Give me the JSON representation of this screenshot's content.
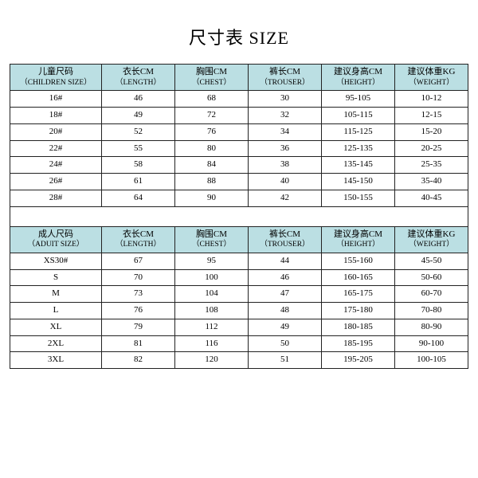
{
  "title": "尺寸表 SIZE",
  "colors": {
    "header_bg": "#bbdfe3",
    "border": "#222222",
    "background": "#ffffff"
  },
  "children_table": {
    "headers": [
      {
        "cn": "儿童尺码",
        "en": "（CHILDREN SIZE）"
      },
      {
        "cn": "衣长CM",
        "en": "（LENGTH）"
      },
      {
        "cn": "胸围CM",
        "en": "（CHEST）"
      },
      {
        "cn": "裤长CM",
        "en": "（TROUSER）"
      },
      {
        "cn": "建议身高CM",
        "en": "（HEIGHT）"
      },
      {
        "cn": "建议体重KG",
        "en": "（WEIGHT）"
      }
    ],
    "rows": [
      [
        "16#",
        "46",
        "68",
        "30",
        "95-105",
        "10-12"
      ],
      [
        "18#",
        "49",
        "72",
        "32",
        "105-115",
        "12-15"
      ],
      [
        "20#",
        "52",
        "76",
        "34",
        "115-125",
        "15-20"
      ],
      [
        "22#",
        "55",
        "80",
        "36",
        "125-135",
        "20-25"
      ],
      [
        "24#",
        "58",
        "84",
        "38",
        "135-145",
        "25-35"
      ],
      [
        "26#",
        "61",
        "88",
        "40",
        "145-150",
        "35-40"
      ],
      [
        "28#",
        "64",
        "90",
        "42",
        "150-155",
        "40-45"
      ]
    ]
  },
  "adult_table": {
    "headers": [
      {
        "cn": "成人尺码",
        "en": "（ADUIT SIZE）"
      },
      {
        "cn": "衣长CM",
        "en": "（LENGTH）"
      },
      {
        "cn": "胸围CM",
        "en": "（CHEST）"
      },
      {
        "cn": "裤长CM",
        "en": "（TROUSER）"
      },
      {
        "cn": "建议身高CM",
        "en": "（HEIGHT）"
      },
      {
        "cn": "建议体重KG",
        "en": "（WEIGHT）"
      }
    ],
    "rows": [
      [
        "XS30#",
        "67",
        "95",
        "44",
        "155-160",
        "45-50"
      ],
      [
        "S",
        "70",
        "100",
        "46",
        "160-165",
        "50-60"
      ],
      [
        "M",
        "73",
        "104",
        "47",
        "165-175",
        "60-70"
      ],
      [
        "L",
        "76",
        "108",
        "48",
        "175-180",
        "70-80"
      ],
      [
        "XL",
        "79",
        "112",
        "49",
        "180-185",
        "80-90"
      ],
      [
        "2XL",
        "81",
        "116",
        "50",
        "185-195",
        "90-100"
      ],
      [
        "3XL",
        "82",
        "120",
        "51",
        "195-205",
        "100-105"
      ]
    ]
  }
}
